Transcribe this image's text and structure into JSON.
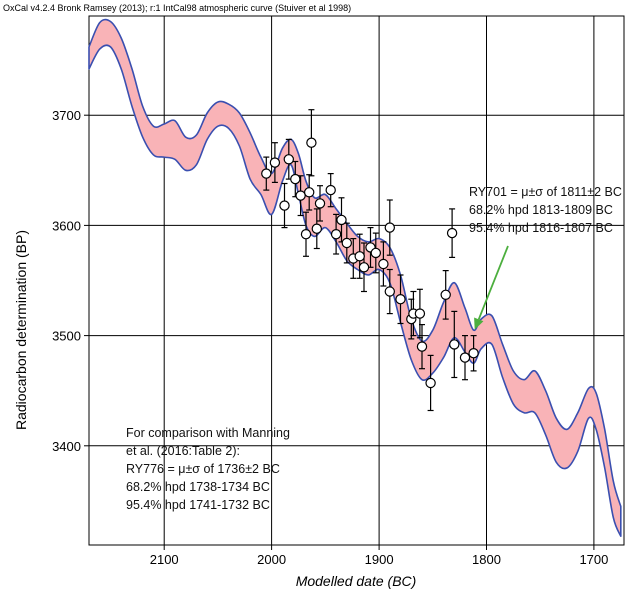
{
  "chart_data": {
    "type": "line",
    "header": "OxCal v4.2.4 Bronk Ramsey (2013); r:1 IntCal98 atmospheric curve (Stuiver et al 1998)",
    "xlabel": "Modelled date (BC)",
    "ylabel": "Radiocarbon determination (BP)",
    "xlim": [
      2170,
      1672
    ],
    "ylim": [
      3310,
      3790
    ],
    "x_ticks": [
      2100,
      2000,
      1900,
      1800,
      1700
    ],
    "y_ticks": [
      3400,
      3500,
      3600,
      3700
    ],
    "grid": true,
    "band_color": "#f9b3b7",
    "band_edge_color": "#3a4fb0",
    "calibration_band": [
      {
        "x": 2170,
        "upper": 3762,
        "lower": 3742
      },
      {
        "x": 2160,
        "upper": 3784,
        "lower": 3760
      },
      {
        "x": 2150,
        "upper": 3785,
        "lower": 3762
      },
      {
        "x": 2140,
        "upper": 3770,
        "lower": 3742
      },
      {
        "x": 2130,
        "upper": 3742,
        "lower": 3708
      },
      {
        "x": 2120,
        "upper": 3708,
        "lower": 3680
      },
      {
        "x": 2110,
        "upper": 3690,
        "lower": 3664
      },
      {
        "x": 2100,
        "upper": 3692,
        "lower": 3662
      },
      {
        "x": 2090,
        "upper": 3695,
        "lower": 3660
      },
      {
        "x": 2080,
        "upper": 3680,
        "lower": 3650
      },
      {
        "x": 2070,
        "upper": 3682,
        "lower": 3655
      },
      {
        "x": 2060,
        "upper": 3702,
        "lower": 3678
      },
      {
        "x": 2050,
        "upper": 3712,
        "lower": 3690
      },
      {
        "x": 2040,
        "upper": 3710,
        "lower": 3688
      },
      {
        "x": 2030,
        "upper": 3702,
        "lower": 3672
      },
      {
        "x": 2020,
        "upper": 3684,
        "lower": 3642
      },
      {
        "x": 2010,
        "upper": 3662,
        "lower": 3628
      },
      {
        "x": 2000,
        "upper": 3647,
        "lower": 3610
      },
      {
        "x": 1990,
        "upper": 3670,
        "lower": 3640
      },
      {
        "x": 1982,
        "upper": 3678,
        "lower": 3655
      },
      {
        "x": 1975,
        "upper": 3665,
        "lower": 3628
      },
      {
        "x": 1968,
        "upper": 3640,
        "lower": 3600
      },
      {
        "x": 1960,
        "upper": 3625,
        "lower": 3590
      },
      {
        "x": 1950,
        "upper": 3628,
        "lower": 3598
      },
      {
        "x": 1940,
        "upper": 3615,
        "lower": 3585
      },
      {
        "x": 1930,
        "upper": 3602,
        "lower": 3568
      },
      {
        "x": 1920,
        "upper": 3590,
        "lower": 3560
      },
      {
        "x": 1910,
        "upper": 3585,
        "lower": 3555
      },
      {
        "x": 1900,
        "upper": 3588,
        "lower": 3560
      },
      {
        "x": 1890,
        "upper": 3580,
        "lower": 3548
      },
      {
        "x": 1880,
        "upper": 3555,
        "lower": 3512
      },
      {
        "x": 1870,
        "upper": 3515,
        "lower": 3478
      },
      {
        "x": 1860,
        "upper": 3495,
        "lower": 3460
      },
      {
        "x": 1850,
        "upper": 3505,
        "lower": 3466
      },
      {
        "x": 1840,
        "upper": 3530,
        "lower": 3480
      },
      {
        "x": 1830,
        "upper": 3548,
        "lower": 3498
      },
      {
        "x": 1820,
        "upper": 3525,
        "lower": 3485
      },
      {
        "x": 1812,
        "upper": 3505,
        "lower": 3475
      },
      {
        "x": 1805,
        "upper": 3515,
        "lower": 3488
      },
      {
        "x": 1795,
        "upper": 3518,
        "lower": 3492
      },
      {
        "x": 1785,
        "upper": 3492,
        "lower": 3462
      },
      {
        "x": 1775,
        "upper": 3468,
        "lower": 3438
      },
      {
        "x": 1765,
        "upper": 3460,
        "lower": 3430
      },
      {
        "x": 1755,
        "upper": 3468,
        "lower": 3430
      },
      {
        "x": 1745,
        "upper": 3450,
        "lower": 3410
      },
      {
        "x": 1735,
        "upper": 3425,
        "lower": 3385
      },
      {
        "x": 1725,
        "upper": 3415,
        "lower": 3380
      },
      {
        "x": 1715,
        "upper": 3430,
        "lower": 3395
      },
      {
        "x": 1705,
        "upper": 3452,
        "lower": 3425
      },
      {
        "x": 1698,
        "upper": 3448,
        "lower": 3415
      },
      {
        "x": 1690,
        "upper": 3415,
        "lower": 3380
      },
      {
        "x": 1682,
        "upper": 3368,
        "lower": 3335
      },
      {
        "x": 1675,
        "upper": 3345,
        "lower": 3318
      }
    ],
    "measurements": [
      {
        "x": 2005,
        "y": 3647,
        "err": 15
      },
      {
        "x": 1997,
        "y": 3657,
        "err": 18
      },
      {
        "x": 1988,
        "y": 3618,
        "err": 20
      },
      {
        "x": 1984,
        "y": 3660,
        "err": 18
      },
      {
        "x": 1978,
        "y": 3642,
        "err": 16
      },
      {
        "x": 1973,
        "y": 3627,
        "err": 18
      },
      {
        "x": 1968,
        "y": 3592,
        "err": 20
      },
      {
        "x": 1965,
        "y": 3630,
        "err": 16
      },
      {
        "x": 1963,
        "y": 3675,
        "err": 30
      },
      {
        "x": 1958,
        "y": 3597,
        "err": 18
      },
      {
        "x": 1955,
        "y": 3620,
        "err": 16
      },
      {
        "x": 1945,
        "y": 3632,
        "err": 15
      },
      {
        "x": 1940,
        "y": 3592,
        "err": 18
      },
      {
        "x": 1935,
        "y": 3605,
        "err": 20
      },
      {
        "x": 1930,
        "y": 3584,
        "err": 18
      },
      {
        "x": 1924,
        "y": 3570,
        "err": 18
      },
      {
        "x": 1918,
        "y": 3572,
        "err": 20
      },
      {
        "x": 1914,
        "y": 3562,
        "err": 22
      },
      {
        "x": 1908,
        "y": 3580,
        "err": 18
      },
      {
        "x": 1903,
        "y": 3575,
        "err": 18
      },
      {
        "x": 1896,
        "y": 3565,
        "err": 20
      },
      {
        "x": 1890,
        "y": 3598,
        "err": 25
      },
      {
        "x": 1890,
        "y": 3540,
        "err": 20
      },
      {
        "x": 1880,
        "y": 3533,
        "err": 22
      },
      {
        "x": 1870,
        "y": 3515,
        "err": 18
      },
      {
        "x": 1868,
        "y": 3520,
        "err": 20
      },
      {
        "x": 1862,
        "y": 3520,
        "err": 22
      },
      {
        "x": 1860,
        "y": 3490,
        "err": 20
      },
      {
        "x": 1852,
        "y": 3457,
        "err": 25
      },
      {
        "x": 1838,
        "y": 3537,
        "err": 22
      },
      {
        "x": 1832,
        "y": 3593,
        "err": 22
      },
      {
        "x": 1830,
        "y": 3492,
        "err": 30
      },
      {
        "x": 1820,
        "y": 3480,
        "err": 20
      },
      {
        "x": 1812,
        "y": 3484,
        "err": 16
      }
    ],
    "annotations": {
      "ry701": {
        "lines": [
          "RY701 = μ±σ of 1811±2 BC",
          "68.2% hpd 1813-1809 BC",
          "95.4% hpd 1816-1807 BC"
        ],
        "arrow_target": {
          "x": 1811,
          "y": 3500
        },
        "arrow_color": "#4caf3e"
      },
      "comparison": {
        "lines": [
          "For comparison with Manning",
          "et al. (2016:Table 2):",
          "RY776 = μ±σ of 1736±2 BC",
          "68.2% hpd 1738-1734 BC",
          "95.4% hpd 1741-1732 BC"
        ]
      }
    }
  }
}
